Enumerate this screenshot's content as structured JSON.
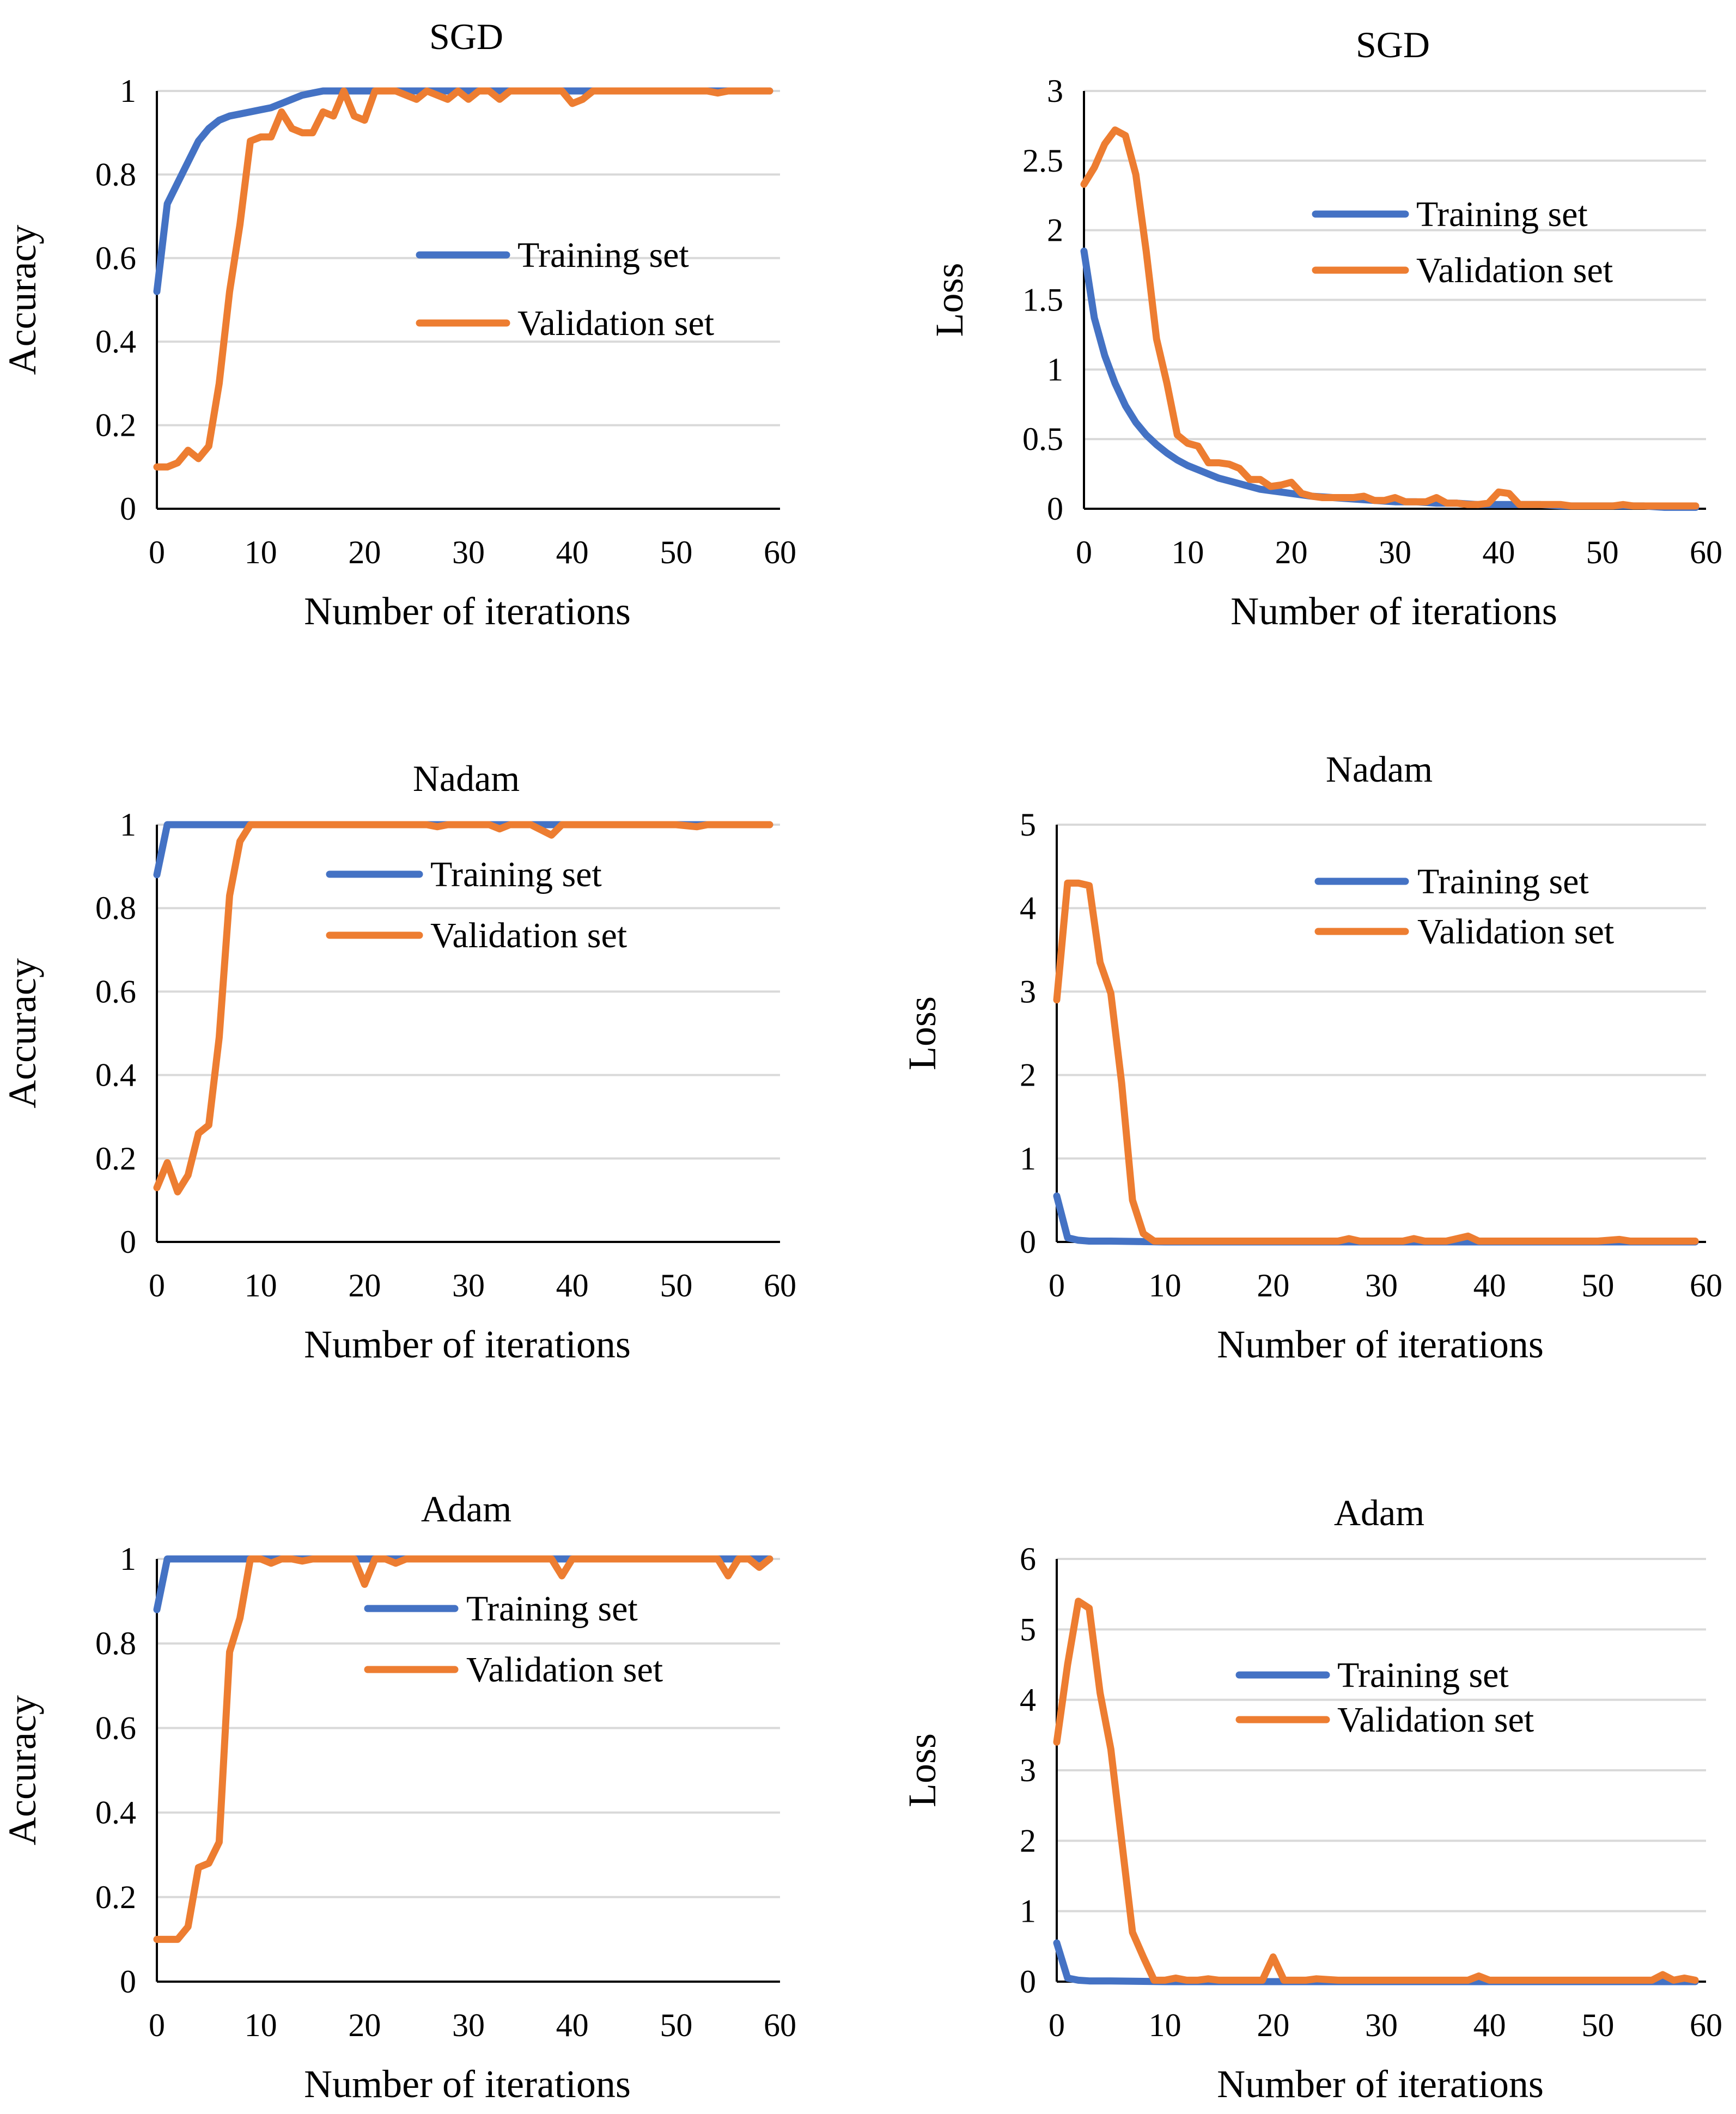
{
  "colors": {
    "training": "#4472c4",
    "validation": "#ed7d31"
  },
  "chart_data": [
    {
      "type": "line",
      "title": "SGD",
      "xlabel": "Number of iterations",
      "ylabel": "Accuracy",
      "xlim": [
        0,
        60
      ],
      "ylim": [
        0,
        1
      ],
      "xticks": [
        "0",
        "10",
        "20",
        "30",
        "40",
        "50",
        "60"
      ],
      "yticks": [
        "0",
        "0.2",
        "0.4",
        "0.6",
        "0.8",
        "1"
      ],
      "legend": [
        "Training set",
        "Validation set"
      ],
      "series": [
        {
          "name": "Training set",
          "x": [
            0,
            1,
            2,
            3,
            4,
            5,
            6,
            7,
            8,
            9,
            10,
            11,
            12,
            13,
            14,
            15,
            16,
            17,
            18,
            19,
            20,
            22,
            24,
            26,
            28,
            30,
            32,
            34,
            36,
            38,
            40,
            42,
            44,
            46,
            48,
            50,
            52,
            54,
            56,
            58,
            59
          ],
          "y": [
            0.52,
            0.73,
            0.78,
            0.83,
            0.88,
            0.91,
            0.93,
            0.94,
            0.945,
            0.95,
            0.955,
            0.96,
            0.97,
            0.98,
            0.99,
            0.995,
            1,
            1,
            1,
            1,
            1,
            1,
            1,
            1,
            1,
            1,
            1,
            1,
            1,
            1,
            1,
            1,
            1,
            1,
            1,
            1,
            1,
            1,
            1,
            1,
            1
          ]
        },
        {
          "name": "Validation set",
          "x": [
            0,
            1,
            2,
            3,
            4,
            5,
            6,
            7,
            8,
            9,
            10,
            11,
            12,
            13,
            14,
            15,
            16,
            17,
            18,
            19,
            20,
            21,
            22,
            23,
            24,
            25,
            26,
            27,
            28,
            29,
            30,
            31,
            32,
            33,
            34,
            35,
            36,
            37,
            38,
            39,
            40,
            41,
            42,
            43,
            44,
            45,
            46,
            47,
            48,
            49,
            50,
            51,
            52,
            53,
            54,
            55,
            56,
            57,
            58,
            59
          ],
          "y": [
            0.1,
            0.1,
            0.11,
            0.14,
            0.12,
            0.15,
            0.3,
            0.52,
            0.68,
            0.88,
            0.89,
            0.89,
            0.95,
            0.91,
            0.9,
            0.9,
            0.95,
            0.94,
            1,
            0.94,
            0.93,
            1,
            1,
            1,
            0.99,
            0.98,
            1,
            0.99,
            0.98,
            1,
            0.98,
            1,
            1,
            0.98,
            1,
            1,
            1,
            1,
            1,
            1,
            0.97,
            0.98,
            1,
            1,
            1,
            1,
            1,
            1,
            1,
            1,
            1,
            1,
            1,
            1,
            0.995,
            1,
            1,
            1,
            1,
            1
          ]
        }
      ]
    },
    {
      "type": "line",
      "title": "SGD",
      "xlabel": "Number of iterations",
      "ylabel": "Loss",
      "xlim": [
        0,
        60
      ],
      "ylim": [
        0,
        3
      ],
      "xticks": [
        "0",
        "10",
        "20",
        "30",
        "40",
        "50",
        "60"
      ],
      "yticks": [
        "0",
        "0.5",
        "1",
        "1.5",
        "2",
        "2.5",
        "3"
      ],
      "legend": [
        "Training set",
        "Validation set"
      ],
      "series": [
        {
          "name": "Training set",
          "x": [
            0,
            1,
            2,
            3,
            4,
            5,
            6,
            7,
            8,
            9,
            10,
            11,
            12,
            13,
            14,
            15,
            16,
            17,
            18,
            19,
            20,
            22,
            24,
            26,
            28,
            30,
            32,
            34,
            36,
            38,
            40,
            42,
            44,
            46,
            48,
            50,
            52,
            54,
            56,
            58,
            59
          ],
          "y": [
            1.85,
            1.37,
            1.1,
            0.9,
            0.74,
            0.62,
            0.53,
            0.46,
            0.4,
            0.35,
            0.31,
            0.28,
            0.25,
            0.22,
            0.2,
            0.18,
            0.16,
            0.14,
            0.13,
            0.12,
            0.11,
            0.09,
            0.08,
            0.07,
            0.06,
            0.05,
            0.05,
            0.04,
            0.04,
            0.03,
            0.03,
            0.03,
            0.03,
            0.02,
            0.02,
            0.02,
            0.02,
            0.02,
            0.01,
            0.01,
            0.01
          ]
        },
        {
          "name": "Validation set",
          "x": [
            0,
            1,
            2,
            3,
            4,
            5,
            6,
            7,
            8,
            9,
            10,
            11,
            12,
            13,
            14,
            15,
            16,
            17,
            18,
            19,
            20,
            21,
            22,
            23,
            24,
            25,
            26,
            27,
            28,
            29,
            30,
            31,
            32,
            33,
            34,
            35,
            36,
            37,
            38,
            39,
            40,
            41,
            42,
            43,
            44,
            45,
            46,
            47,
            48,
            49,
            50,
            51,
            52,
            53,
            54,
            55,
            56,
            57,
            58,
            59
          ],
          "y": [
            2.33,
            2.45,
            2.62,
            2.72,
            2.68,
            2.4,
            1.85,
            1.22,
            0.9,
            0.53,
            0.47,
            0.45,
            0.33,
            0.33,
            0.32,
            0.29,
            0.21,
            0.21,
            0.16,
            0.17,
            0.19,
            0.11,
            0.09,
            0.08,
            0.08,
            0.08,
            0.08,
            0.09,
            0.06,
            0.06,
            0.08,
            0.05,
            0.05,
            0.05,
            0.08,
            0.04,
            0.04,
            0.03,
            0.03,
            0.04,
            0.12,
            0.11,
            0.03,
            0.03,
            0.03,
            0.03,
            0.03,
            0.02,
            0.02,
            0.02,
            0.02,
            0.02,
            0.03,
            0.02,
            0.02,
            0.02,
            0.02,
            0.02,
            0.02,
            0.02
          ]
        }
      ]
    },
    {
      "type": "line",
      "title": "Nadam",
      "xlabel": "Number of iterations",
      "ylabel": "Accuracy",
      "xlim": [
        0,
        60
      ],
      "ylim": [
        0,
        1
      ],
      "xticks": [
        "0",
        "10",
        "20",
        "30",
        "40",
        "50",
        "60"
      ],
      "yticks": [
        "0",
        "0.2",
        "0.4",
        "0.6",
        "0.8",
        "1"
      ],
      "legend": [
        "Training set",
        "Validation set"
      ],
      "series": [
        {
          "name": "Training set",
          "x": [
            0,
            1,
            2,
            3,
            4,
            5,
            6,
            7,
            8,
            9,
            10,
            15,
            20,
            25,
            30,
            35,
            40,
            45,
            50,
            55,
            59
          ],
          "y": [
            0.88,
            1,
            1,
            1,
            1,
            1,
            1,
            1,
            1,
            1,
            1,
            1,
            1,
            1,
            1,
            1,
            1,
            1,
            1,
            1,
            1
          ]
        },
        {
          "name": "Validation set",
          "x": [
            0,
            1,
            2,
            3,
            4,
            5,
            6,
            7,
            8,
            9,
            10,
            11,
            12,
            14,
            16,
            18,
            20,
            22,
            24,
            26,
            27,
            28,
            30,
            32,
            33,
            34,
            36,
            38,
            39,
            40,
            42,
            44,
            46,
            48,
            50,
            52,
            53,
            54,
            56,
            58,
            59
          ],
          "y": [
            0.13,
            0.19,
            0.12,
            0.16,
            0.26,
            0.28,
            0.49,
            0.83,
            0.96,
            1,
            1,
            1,
            1,
            1,
            1,
            1,
            1,
            1,
            1,
            1,
            0.995,
            1,
            1,
            1,
            0.99,
            1,
            1,
            0.975,
            1,
            1,
            1,
            1,
            1,
            1,
            1,
            0.995,
            1,
            1,
            1,
            1,
            1
          ]
        }
      ]
    },
    {
      "type": "line",
      "title": "Nadam",
      "xlabel": "Number of iterations",
      "ylabel": "Loss",
      "xlim": [
        0,
        60
      ],
      "ylim": [
        0,
        5
      ],
      "xticks": [
        "0",
        "10",
        "20",
        "30",
        "40",
        "50",
        "60"
      ],
      "yticks": [
        "0",
        "1",
        "2",
        "3",
        "4",
        "5"
      ],
      "legend": [
        "Training set",
        "Validation set"
      ],
      "series": [
        {
          "name": "Training set",
          "x": [
            0,
            1,
            2,
            3,
            5,
            10,
            20,
            30,
            40,
            50,
            59
          ],
          "y": [
            0.55,
            0.05,
            0.02,
            0.01,
            0.01,
            0,
            0,
            0,
            0,
            0,
            0
          ]
        },
        {
          "name": "Validation set",
          "x": [
            0,
            1,
            2,
            3,
            4,
            5,
            6,
            7,
            8,
            9,
            10,
            12,
            14,
            16,
            18,
            20,
            22,
            24,
            26,
            27,
            28,
            30,
            32,
            33,
            34,
            36,
            38,
            39,
            40,
            42,
            44,
            46,
            48,
            50,
            52,
            53,
            54,
            56,
            58,
            59
          ],
          "y": [
            2.9,
            4.3,
            4.3,
            4.27,
            3.35,
            2.98,
            1.9,
            0.5,
            0.1,
            0.01,
            0.01,
            0.01,
            0.01,
            0.01,
            0.01,
            0.01,
            0.01,
            0.01,
            0.01,
            0.04,
            0.01,
            0.01,
            0.01,
            0.04,
            0.01,
            0.01,
            0.07,
            0.01,
            0.01,
            0.01,
            0.01,
            0.01,
            0.01,
            0.01,
            0.03,
            0.01,
            0.01,
            0.01,
            0.01,
            0.01
          ]
        }
      ]
    },
    {
      "type": "line",
      "title": "Adam",
      "xlabel": "Number of iterations",
      "ylabel": "Accuracy",
      "xlim": [
        0,
        60
      ],
      "ylim": [
        0,
        1
      ],
      "xticks": [
        "0",
        "10",
        "20",
        "30",
        "40",
        "50",
        "60"
      ],
      "yticks": [
        "0",
        "0.2",
        "0.4",
        "0.6",
        "0.8",
        "1"
      ],
      "legend": [
        "Training set",
        "Validation set"
      ],
      "series": [
        {
          "name": "Training set",
          "x": [
            0,
            1,
            2,
            3,
            4,
            5,
            10,
            15,
            20,
            25,
            30,
            35,
            40,
            45,
            50,
            55,
            59
          ],
          "y": [
            0.88,
            1,
            1,
            1,
            1,
            1,
            1,
            1,
            1,
            1,
            1,
            1,
            1,
            1,
            1,
            1,
            1
          ]
        },
        {
          "name": "Validation set",
          "x": [
            0,
            1,
            2,
            3,
            4,
            5,
            6,
            7,
            8,
            9,
            10,
            11,
            12,
            13,
            14,
            15,
            16,
            18,
            19,
            20,
            21,
            22,
            23,
            24,
            26,
            28,
            30,
            32,
            34,
            36,
            38,
            39,
            40,
            42,
            44,
            46,
            48,
            50,
            52,
            54,
            55,
            56,
            57,
            58,
            59
          ],
          "y": [
            0.1,
            0.1,
            0.1,
            0.13,
            0.27,
            0.28,
            0.33,
            0.78,
            0.86,
            1,
            1,
            0.99,
            1,
            1,
            0.995,
            1,
            1,
            1,
            1,
            0.94,
            1,
            1,
            0.99,
            1,
            1,
            1,
            1,
            1,
            1,
            1,
            1,
            0.96,
            1,
            1,
            1,
            1,
            1,
            1,
            1,
            1,
            0.96,
            1,
            1,
            0.98,
            1
          ]
        }
      ]
    },
    {
      "type": "line",
      "title": "Adam",
      "xlabel": "Number of iterations",
      "ylabel": "Loss",
      "xlim": [
        0,
        60
      ],
      "ylim": [
        0,
        6
      ],
      "xticks": [
        "0",
        "10",
        "20",
        "30",
        "40",
        "50",
        "60"
      ],
      "yticks": [
        "0",
        "1",
        "2",
        "3",
        "4",
        "5",
        "6"
      ],
      "legend": [
        "Training set",
        "Validation set"
      ],
      "series": [
        {
          "name": "Training set",
          "x": [
            0,
            1,
            2,
            3,
            5,
            10,
            20,
            30,
            40,
            50,
            59
          ],
          "y": [
            0.55,
            0.05,
            0.02,
            0.01,
            0.01,
            0,
            0,
            0,
            0,
            0,
            0
          ]
        },
        {
          "name": "Validation set",
          "x": [
            0,
            1,
            2,
            3,
            4,
            5,
            6,
            7,
            8,
            9,
            10,
            11,
            12,
            13,
            14,
            15,
            16,
            17,
            18,
            19,
            20,
            21,
            22,
            23,
            24,
            26,
            28,
            30,
            32,
            34,
            36,
            38,
            39,
            40,
            42,
            44,
            46,
            48,
            50,
            52,
            54,
            55,
            56,
            57,
            58,
            59
          ],
          "y": [
            3.4,
            4.5,
            5.4,
            5.3,
            4.1,
            3.3,
            2.0,
            0.7,
            0.35,
            0.02,
            0.02,
            0.05,
            0.02,
            0.02,
            0.04,
            0.02,
            0.02,
            0.02,
            0.02,
            0.02,
            0.35,
            0.02,
            0.02,
            0.02,
            0.04,
            0.02,
            0.02,
            0.02,
            0.02,
            0.02,
            0.02,
            0.02,
            0.08,
            0.02,
            0.02,
            0.02,
            0.02,
            0.02,
            0.02,
            0.02,
            0.02,
            0.02,
            0.1,
            0.02,
            0.05,
            0.02
          ]
        }
      ]
    }
  ]
}
